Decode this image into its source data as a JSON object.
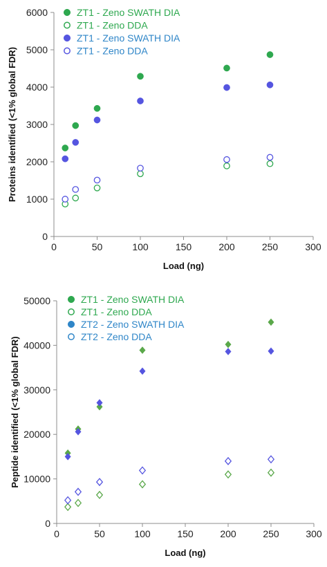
{
  "chart_data": [
    {
      "type": "scatter",
      "title": "",
      "xlabel": "Load (ng)",
      "ylabel": "Proteins identified (<1% global FDR)",
      "xlim": [
        0,
        300
      ],
      "ylim": [
        0,
        6000
      ],
      "x_ticks": [
        "0",
        "50",
        "100",
        "150",
        "200",
        "250",
        "300"
      ],
      "y_ticks": [
        "0",
        "1000",
        "2000",
        "3000",
        "4000",
        "5000",
        "6000"
      ],
      "grid": false,
      "legend_position": "top-left",
      "series": [
        {
          "name": "ZT1 - Zeno SWATH DIA",
          "marker": "circle",
          "filled": true,
          "color": "#2ea84f",
          "label_color": "#2ea84f",
          "x": [
            13,
            25,
            50,
            100,
            200,
            250
          ],
          "y": [
            2370,
            2970,
            3430,
            4290,
            4510,
            4870
          ]
        },
        {
          "name": "ZT1 - Zeno DDA",
          "marker": "circle",
          "filled": false,
          "color": "#2ea84f",
          "label_color": "#2ea84f",
          "x": [
            13,
            25,
            50,
            100,
            200,
            250
          ],
          "y": [
            870,
            1030,
            1300,
            1680,
            1890,
            1950
          ]
        },
        {
          "name": "ZT1 - Zeno SWATH DIA",
          "marker": "circle",
          "filled": true,
          "color": "#5555e0",
          "label_color": "#2f86c8",
          "x": [
            13,
            25,
            50,
            100,
            200,
            250
          ],
          "y": [
            2080,
            2520,
            3120,
            3630,
            3990,
            4060
          ]
        },
        {
          "name": "ZT1 - Zeno DDA",
          "marker": "circle",
          "filled": false,
          "color": "#5555e0",
          "label_color": "#2f86c8",
          "x": [
            13,
            25,
            50,
            100,
            200,
            250
          ],
          "y": [
            1000,
            1260,
            1510,
            1830,
            2060,
            2120
          ]
        }
      ]
    },
    {
      "type": "scatter",
      "title": "",
      "xlabel": "Load (ng)",
      "ylabel": "Peptide identified (<1% global FDR)",
      "xlim": [
        0,
        300
      ],
      "ylim": [
        0,
        50000
      ],
      "x_ticks": [
        "0",
        "50",
        "100",
        "150",
        "200",
        "250",
        "300"
      ],
      "y_ticks": [
        "0",
        "10000",
        "20000",
        "30000",
        "40000",
        "50000"
      ],
      "grid": false,
      "legend_position": "top-left",
      "series": [
        {
          "name": "ZT1 - Zeno SWATH DIA",
          "marker": "diamond",
          "filled": true,
          "color": "#5aa84a",
          "label_color": "#2ea84f",
          "legend_marker": "circle",
          "legend_color": "#2ea84f",
          "x": [
            13,
            25,
            50,
            100,
            200,
            250
          ],
          "y": [
            15800,
            21200,
            26200,
            38900,
            40200,
            45200
          ]
        },
        {
          "name": "ZT1 - Zeno DDA",
          "marker": "diamond",
          "filled": false,
          "color": "#5aa84a",
          "label_color": "#2ea84f",
          "legend_marker": "circle",
          "legend_color": "#2ea84f",
          "x": [
            13,
            25,
            50,
            100,
            200,
            250
          ],
          "y": [
            3700,
            4600,
            6400,
            8800,
            11000,
            11400
          ]
        },
        {
          "name": "ZT2 - Zeno SWATH DIA",
          "marker": "diamond",
          "filled": true,
          "color": "#5555e0",
          "label_color": "#2f86c8",
          "legend_marker": "circle",
          "legend_color": "#2f86c8",
          "x": [
            13,
            25,
            50,
            100,
            200,
            250
          ],
          "y": [
            15000,
            20600,
            27100,
            34200,
            38600,
            38700
          ]
        },
        {
          "name": "ZT2 - Zeno DDA",
          "marker": "diamond",
          "filled": false,
          "color": "#5555e0",
          "label_color": "#2f86c8",
          "legend_marker": "circle",
          "legend_color": "#2f86c8",
          "x": [
            13,
            25,
            50,
            100,
            200,
            250
          ],
          "y": [
            5200,
            7100,
            9300,
            11900,
            14000,
            14400
          ]
        }
      ]
    }
  ]
}
